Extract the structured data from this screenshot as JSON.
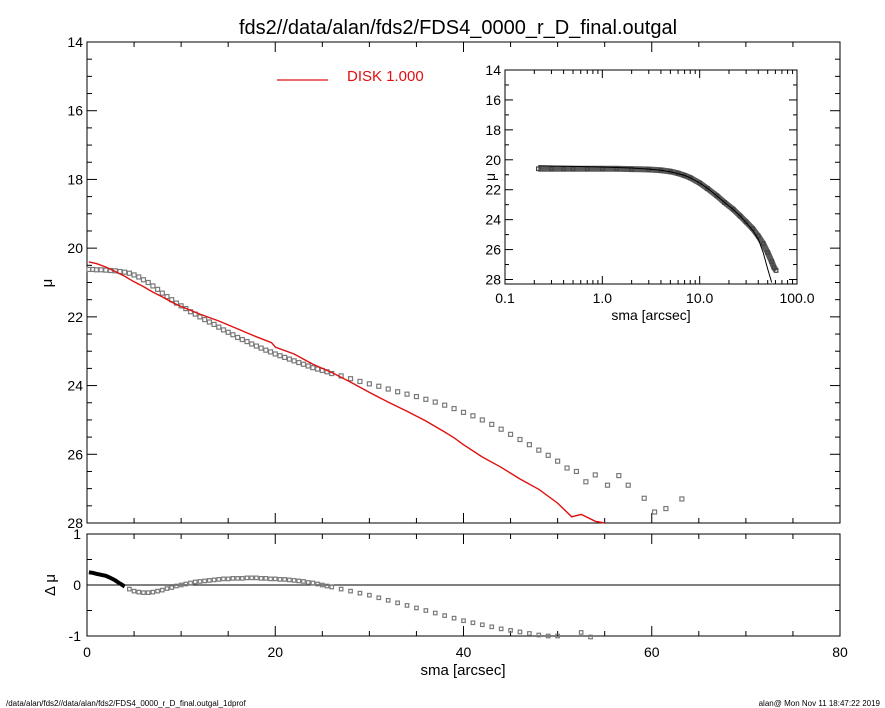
{
  "title": "fds2//data/alan/fds2/FDS4_0000_r_D_final.outgal",
  "footer_left": "/data/alan/fds2//data/alan/fds2/FDS4_0000_r_D_final.outgal_1dprof",
  "footer_right": "alan@  Mon Nov 11 18:47:22 2019",
  "colors": {
    "model": "#e01010",
    "data": "#7a7a7a",
    "axes": "#000000"
  },
  "chart_data": [
    {
      "panel": "main",
      "type": "scatter",
      "xlabel": "sma [arcsec]",
      "ylabel": "μ",
      "xlim": [
        0,
        80
      ],
      "ylim": [
        28,
        14
      ],
      "y_inverted": true,
      "y_tick_labels": [
        "14",
        "16",
        "18",
        "20",
        "22",
        "24",
        "26",
        "28"
      ],
      "legend": {
        "label": "DISK  1.000",
        "placement": "top-center"
      },
      "series": [
        {
          "name": "DISK  1.000",
          "kind": "line",
          "x": [
            0.2,
            1,
            2,
            3,
            4,
            5,
            6,
            7,
            8,
            9,
            10,
            12,
            14,
            16,
            18,
            19.6,
            20,
            22,
            24,
            26,
            28,
            30,
            32,
            34,
            36,
            38,
            39,
            40,
            42,
            44,
            46,
            48,
            50,
            51.5,
            52.5,
            54,
            55
          ],
          "y": [
            20.4,
            20.45,
            20.55,
            20.68,
            20.82,
            20.98,
            21.12,
            21.28,
            21.42,
            21.57,
            21.7,
            21.92,
            22.12,
            22.35,
            22.58,
            22.75,
            22.88,
            23.08,
            23.38,
            23.62,
            23.9,
            24.2,
            24.48,
            24.75,
            25.03,
            25.35,
            25.52,
            25.72,
            26.08,
            26.38,
            26.72,
            27.02,
            27.42,
            27.82,
            27.75,
            27.95,
            28.0
          ]
        },
        {
          "name": "",
          "kind": "markers",
          "x": [
            0.2,
            0.6,
            1,
            1.5,
            2,
            2.5,
            3,
            3.5,
            4,
            4.5,
            5,
            5.5,
            6,
            6.5,
            7,
            7.5,
            8,
            8.5,
            9,
            9.5,
            10,
            10.5,
            11,
            11.5,
            12,
            12.5,
            13,
            13.5,
            14,
            14.5,
            15,
            15.5,
            16,
            16.5,
            17,
            17.5,
            18,
            18.5,
            19,
            19.5,
            20,
            20.5,
            21,
            21.5,
            22,
            22.5,
            23,
            23.5,
            24,
            24.5,
            25,
            25.5,
            26,
            27,
            28,
            29,
            30,
            31,
            32,
            33,
            34,
            35,
            36,
            37,
            38,
            39,
            40,
            41,
            42,
            43,
            44,
            45,
            46,
            47,
            48,
            49,
            50,
            51,
            52,
            53,
            54,
            55.3,
            56.5,
            57.5,
            59.2,
            60.3,
            61.5,
            63.2
          ],
          "y": [
            20.62,
            20.62,
            20.63,
            20.63,
            20.64,
            20.65,
            20.66,
            20.68,
            20.7,
            20.73,
            20.78,
            20.84,
            20.92,
            21.0,
            21.1,
            21.2,
            21.31,
            21.41,
            21.5,
            21.6,
            21.68,
            21.76,
            21.85,
            21.92,
            22.0,
            22.08,
            22.15,
            22.22,
            22.3,
            22.38,
            22.45,
            22.52,
            22.6,
            22.66,
            22.72,
            22.79,
            22.85,
            22.91,
            22.97,
            23.02,
            23.08,
            23.13,
            23.18,
            23.23,
            23.28,
            23.33,
            23.38,
            23.43,
            23.48,
            23.52,
            23.56,
            23.6,
            23.65,
            23.72,
            23.8,
            23.88,
            23.95,
            24.02,
            24.1,
            24.18,
            24.25,
            24.32,
            24.4,
            24.48,
            24.57,
            24.67,
            24.78,
            24.88,
            25.0,
            25.13,
            25.27,
            25.42,
            25.57,
            25.72,
            25.88,
            26.03,
            26.2,
            26.4,
            26.5,
            26.8,
            26.6,
            26.9,
            26.62,
            26.9,
            27.28,
            27.68,
            27.58,
            27.3
          ]
        }
      ]
    },
    {
      "panel": "residual",
      "type": "scatter",
      "xlabel": "sma [arcsec]",
      "ylabel": "Δ μ",
      "xlim": [
        0,
        80
      ],
      "ylim": [
        -1,
        1
      ],
      "x_tick_labels": [
        "0",
        "20",
        "40",
        "60",
        "80"
      ],
      "y_tick_labels": [
        "1",
        "0",
        "-1"
      ],
      "series": [
        {
          "name": "",
          "kind": "markers",
          "x": [
            0.2,
            0.6,
            1,
            1.5,
            2,
            2.5,
            3,
            3.5,
            4,
            4.5,
            5,
            5.5,
            6,
            6.5,
            7,
            7.5,
            8,
            8.5,
            9,
            9.5,
            10,
            10.5,
            11,
            11.5,
            12,
            12.5,
            13,
            13.5,
            14,
            14.5,
            15,
            15.5,
            16,
            16.5,
            17,
            17.5,
            18,
            18.5,
            19,
            19.5,
            20,
            20.5,
            21,
            21.5,
            22,
            22.5,
            23,
            23.5,
            24,
            24.5,
            25,
            25.5,
            26,
            27,
            28,
            29,
            30,
            31,
            32,
            33,
            34,
            35,
            36,
            37,
            38,
            39,
            40,
            41,
            42,
            43,
            44,
            45,
            46,
            47,
            48,
            49,
            50,
            52.5,
            53.5
          ],
          "y": [
            0.25,
            0.24,
            0.22,
            0.2,
            0.18,
            0.14,
            0.09,
            0.03,
            -0.03,
            -0.08,
            -0.12,
            -0.14,
            -0.15,
            -0.15,
            -0.14,
            -0.12,
            -0.1,
            -0.07,
            -0.05,
            -0.02,
            0.0,
            0.02,
            0.04,
            0.06,
            0.07,
            0.08,
            0.09,
            0.1,
            0.11,
            0.12,
            0.12,
            0.13,
            0.13,
            0.13,
            0.14,
            0.14,
            0.14,
            0.13,
            0.13,
            0.12,
            0.12,
            0.11,
            0.11,
            0.1,
            0.09,
            0.08,
            0.07,
            0.05,
            0.04,
            0.02,
            0.0,
            -0.02,
            -0.04,
            -0.08,
            -0.12,
            -0.16,
            -0.2,
            -0.25,
            -0.3,
            -0.35,
            -0.4,
            -0.45,
            -0.5,
            -0.55,
            -0.6,
            -0.65,
            -0.7,
            -0.74,
            -0.78,
            -0.82,
            -0.86,
            -0.89,
            -0.92,
            -0.95,
            -0.98,
            -1.0,
            -1.0,
            -0.93,
            -1.02
          ]
        }
      ]
    },
    {
      "panel": "inset",
      "type": "scatter",
      "xlabel": "sma [arcsec]",
      "ylabel": "μ",
      "x_scale": "log",
      "xlim": [
        0.1,
        100
      ],
      "ylim": [
        28.3,
        14
      ],
      "y_inverted": true,
      "x_tick_labels": [
        "0.1",
        "1.0",
        "10.0",
        "100.0"
      ],
      "y_tick_labels": [
        "14",
        "16",
        "18",
        "20",
        "22",
        "24",
        "26",
        "28"
      ],
      "series": [
        {
          "name": "",
          "kind": "markers",
          "x": [
            0.22,
            0.3,
            0.4,
            0.5,
            0.7,
            1.0,
            1.4,
            2.0,
            3.0,
            4.0,
            5.0,
            6.0,
            7.0,
            8.0,
            10.0,
            12.0,
            15.0,
            18.0,
            22.0,
            26.0,
            30.0,
            35.0,
            40.0,
            45.0,
            50.0,
            55.0,
            58.0,
            61.0
          ],
          "y": [
            20.6,
            20.6,
            20.6,
            20.6,
            20.6,
            20.6,
            20.6,
            20.62,
            20.65,
            20.7,
            20.78,
            20.9,
            21.05,
            21.2,
            21.55,
            21.92,
            22.4,
            22.85,
            23.3,
            23.75,
            24.15,
            24.6,
            25.1,
            25.6,
            26.2,
            26.8,
            27.2,
            27.4
          ]
        },
        {
          "name": "",
          "kind": "line",
          "x": [
            0.22,
            0.5,
            1.0,
            2.0,
            3.0,
            4.0,
            5.0,
            6.0,
            7.0,
            8.0,
            10.0,
            12.0,
            15.0,
            18.0,
            22.0,
            26.0,
            30.0,
            35.0,
            40.0,
            45.0,
            50.0,
            55.0
          ],
          "y": [
            20.4,
            20.44,
            20.48,
            20.55,
            20.62,
            20.7,
            20.8,
            20.92,
            21.05,
            21.2,
            21.55,
            21.9,
            22.4,
            22.85,
            23.3,
            23.75,
            24.2,
            24.7,
            25.3,
            26.2,
            27.3,
            28.2
          ]
        }
      ]
    }
  ]
}
